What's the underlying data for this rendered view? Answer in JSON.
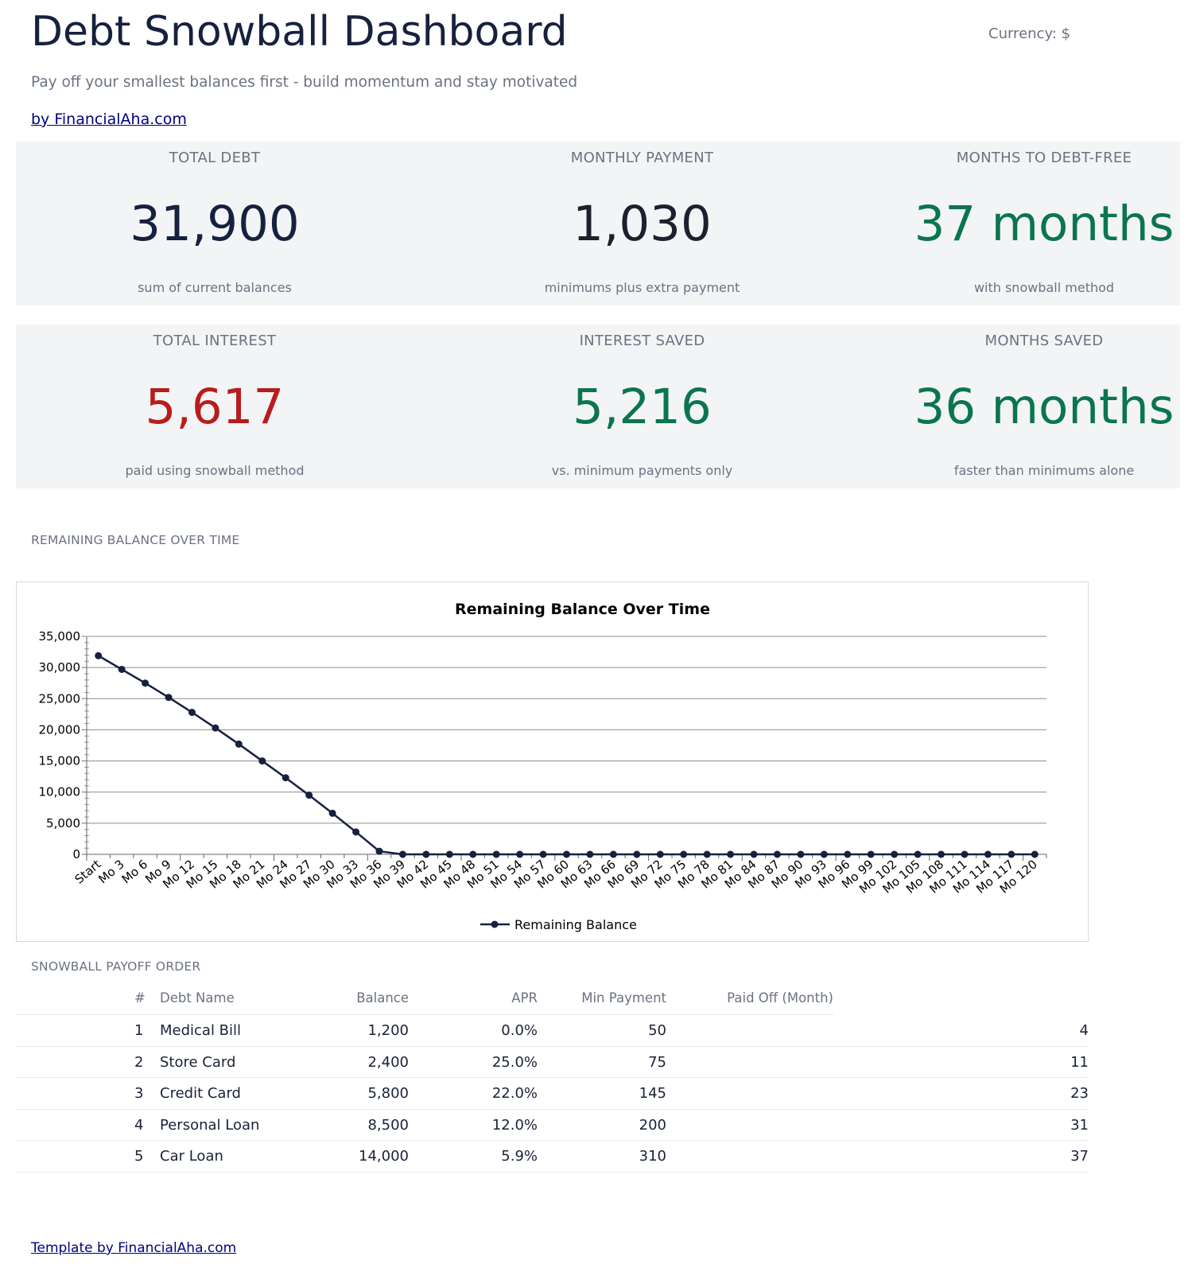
{
  "header": {
    "title": "Debt Snowball Dashboard",
    "currency": "Currency: $",
    "subtitle": "Pay off your smallest balances first - build momentum and stay motivated",
    "by_link": "by FinancialAha.com"
  },
  "kpis_row1": [
    {
      "label": "TOTAL DEBT",
      "value": "31,900",
      "note": "sum of current balances",
      "color": "#16213e"
    },
    {
      "label": "MONTHLY PAYMENT",
      "value": "1,030",
      "note": "minimums plus extra payment",
      "color": "#1f1f2e"
    },
    {
      "label": "MONTHS TO DEBT-FREE",
      "value": "37 months",
      "note": "with snowball method",
      "color": "#0a7550"
    }
  ],
  "kpis_row2": [
    {
      "label": "TOTAL INTEREST",
      "value": "5,617",
      "note": "paid using snowball method",
      "color": "#b91c1c"
    },
    {
      "label": "INTEREST SAVED",
      "value": "5,216",
      "note": "vs. minimum payments only",
      "color": "#0a7550"
    },
    {
      "label": "MONTHS SAVED",
      "value": "36 months",
      "note": "faster than minimums alone",
      "color": "#0a7550"
    }
  ],
  "chart_section_label": "REMAINING BALANCE OVER TIME",
  "chart_data": {
    "type": "line",
    "title": "Remaining Balance Over Time",
    "xlabel": "",
    "ylabel": "",
    "ylim": [
      0,
      35000
    ],
    "yticks": [
      "0",
      "5,000",
      "10,000",
      "15,000",
      "20,000",
      "25,000",
      "30,000",
      "35,000"
    ],
    "categories": [
      "Start",
      "Mo 3",
      "Mo 6",
      "Mo 9",
      "Mo 12",
      "Mo 15",
      "Mo 18",
      "Mo 21",
      "Mo 24",
      "Mo 27",
      "Mo 30",
      "Mo 33",
      "Mo 36",
      "Mo 39",
      "Mo 42",
      "Mo 45",
      "Mo 48",
      "Mo 51",
      "Mo 54",
      "Mo 57",
      "Mo 60",
      "Mo 63",
      "Mo 66",
      "Mo 69",
      "Mo 72",
      "Mo 75",
      "Mo 78",
      "Mo 81",
      "Mo 84",
      "Mo 87",
      "Mo 90",
      "Mo 93",
      "Mo 96",
      "Mo 99",
      "Mo 102",
      "Mo 105",
      "Mo 108",
      "Mo 111",
      "Mo 114",
      "Mo 117",
      "Mo 120"
    ],
    "series": [
      {
        "name": "Remaining Balance",
        "color": "#16213e",
        "values": [
          31900,
          29700,
          27500,
          25200,
          22800,
          20300,
          17700,
          15000,
          12300,
          9500,
          6600,
          3600,
          500,
          0,
          0,
          0,
          0,
          0,
          0,
          0,
          0,
          0,
          0,
          0,
          0,
          0,
          0,
          0,
          0,
          0,
          0,
          0,
          0,
          0,
          0,
          0,
          0,
          0,
          0,
          0,
          0
        ]
      }
    ],
    "grid": true,
    "legend": "bottom"
  },
  "table_section_label": "SNOWBALL PAYOFF ORDER",
  "table": {
    "headers": {
      "num": "#",
      "name": "Debt Name",
      "balance": "Balance",
      "apr": "APR",
      "min": "Min Payment",
      "paid": "Paid Off (Month)"
    },
    "rows": [
      {
        "num": "1",
        "name": "Medical Bill",
        "balance": "1,200",
        "apr": "0.0%",
        "min": "50",
        "paid": "4"
      },
      {
        "num": "2",
        "name": "Store Card",
        "balance": "2,400",
        "apr": "25.0%",
        "min": "75",
        "paid": "11"
      },
      {
        "num": "3",
        "name": "Credit Card",
        "balance": "5,800",
        "apr": "22.0%",
        "min": "145",
        "paid": "23"
      },
      {
        "num": "4",
        "name": "Personal Loan",
        "balance": "8,500",
        "apr": "12.0%",
        "min": "200",
        "paid": "31"
      },
      {
        "num": "5",
        "name": "Car Loan",
        "balance": "14,000",
        "apr": "5.9%",
        "min": "310",
        "paid": "37"
      }
    ]
  },
  "footer": {
    "link": "Template by FinancialAha.com"
  }
}
